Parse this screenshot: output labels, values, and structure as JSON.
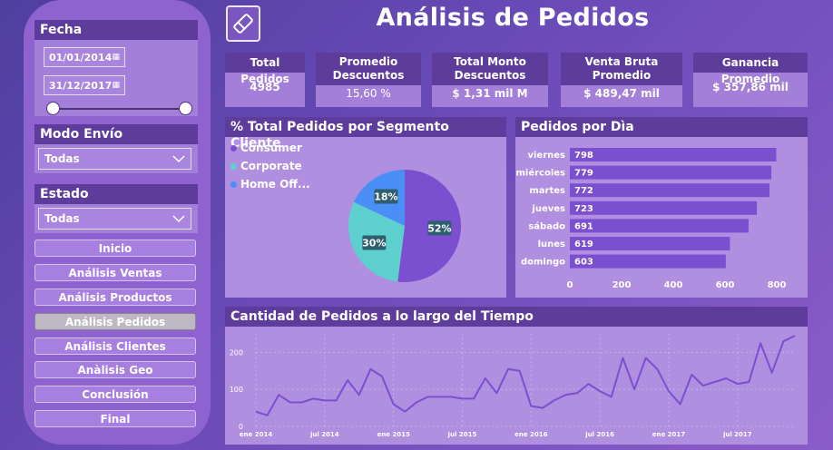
{
  "header": {
    "title": "Análisis de Pedidos"
  },
  "filters": {
    "fecha": {
      "label": "Fecha",
      "start": "01/01/2014",
      "end": "31/12/2017",
      "range": [
        0,
        1
      ]
    },
    "modo_envio": {
      "label": "Modo Envío",
      "value": "Todas"
    },
    "estado": {
      "label": "Estado",
      "value": "Todas"
    }
  },
  "nav": {
    "items": [
      "Inicio",
      "Análisis Ventas",
      "Análisis Productos",
      "Análisis Pedidos",
      "Análisis Clientes",
      "Anàlisis Geo",
      "Conclusión",
      "Final"
    ],
    "active": "Análisis Pedidos"
  },
  "kpis": [
    {
      "label": "Total Pedidos",
      "value": "4985"
    },
    {
      "label": "Promedio Descuentos",
      "value": "15,60 %"
    },
    {
      "label": "Total Monto Descuentos",
      "value": "$ 1,31 mil M"
    },
    {
      "label": "Venta Bruta Promedio",
      "value": "$ 489,47 mil"
    },
    {
      "label": "Ganancia Promedio",
      "value": "$ 357,86 mil"
    }
  ],
  "segment_panel": {
    "title": "% Total Pedidos por Segmento Cliente",
    "legend": [
      "Consumer",
      "Corporate",
      "Home Off..."
    ]
  },
  "day_panel": {
    "title": "Pedidos por Dìa"
  },
  "time_panel": {
    "title": "Cantidad de Pedidos a lo largo del Tiempo"
  },
  "colors": {
    "consumer": "#7b4fd0",
    "corporate": "#5ecfcf",
    "home_office": "#4a8ff5",
    "bar": "#7b4fd0",
    "line": "#7b4fd0"
  },
  "chart_data": [
    {
      "type": "pie",
      "title": "% Total Pedidos por Segmento Cliente",
      "labels": [
        "Consumer",
        "Corporate",
        "Home Office"
      ],
      "values": [
        52,
        30,
        18
      ],
      "value_labels": [
        "52%",
        "30%",
        "18%"
      ],
      "colors": [
        "#7b4fd0",
        "#5ecfcf",
        "#4a8ff5"
      ]
    },
    {
      "type": "bar",
      "orientation": "horizontal",
      "title": "Pedidos por Dìa",
      "categories": [
        "viernes",
        "miércoles",
        "martes",
        "jueves",
        "sábado",
        "lunes",
        "domingo"
      ],
      "values": [
        798,
        779,
        772,
        723,
        691,
        619,
        603
      ],
      "xlim": [
        0,
        800
      ],
      "xticks": [
        "0",
        "200",
        "400",
        "600",
        "800"
      ]
    },
    {
      "type": "line",
      "title": "Cantidad de Pedidos a lo largo del Tiempo",
      "x": [
        "2014-01",
        "2014-02",
        "2014-03",
        "2014-04",
        "2014-05",
        "2014-06",
        "2014-07",
        "2014-08",
        "2014-09",
        "2014-10",
        "2014-11",
        "2014-12",
        "2015-01",
        "2015-02",
        "2015-03",
        "2015-04",
        "2015-05",
        "2015-06",
        "2015-07",
        "2015-08",
        "2015-09",
        "2015-10",
        "2015-11",
        "2015-12",
        "2016-01",
        "2016-02",
        "2016-03",
        "2016-04",
        "2016-05",
        "2016-06",
        "2016-07",
        "2016-08",
        "2016-09",
        "2016-10",
        "2016-11",
        "2016-12",
        "2017-01",
        "2017-02",
        "2017-03",
        "2017-04",
        "2017-05",
        "2017-06",
        "2017-07",
        "2017-08",
        "2017-09",
        "2017-10",
        "2017-11",
        "2017-12"
      ],
      "values": [
        40,
        30,
        85,
        65,
        65,
        75,
        70,
        70,
        125,
        85,
        155,
        135,
        60,
        40,
        65,
        80,
        80,
        80,
        75,
        75,
        130,
        90,
        155,
        150,
        55,
        50,
        70,
        85,
        90,
        115,
        95,
        80,
        185,
        100,
        185,
        155,
        95,
        60,
        140,
        110,
        120,
        130,
        115,
        120,
        225,
        145,
        230,
        245
      ],
      "ylim": [
        0,
        250
      ],
      "yticks": [
        "0",
        "100",
        "200"
      ],
      "yticks_values": [
        0,
        100,
        200
      ],
      "xtick_labels": [
        "ene 2014",
        "jul 2014",
        "ene 2015",
        "jul 2015",
        "ene 2016",
        "jul 2016",
        "ene 2017",
        "jul 2017"
      ]
    }
  ]
}
